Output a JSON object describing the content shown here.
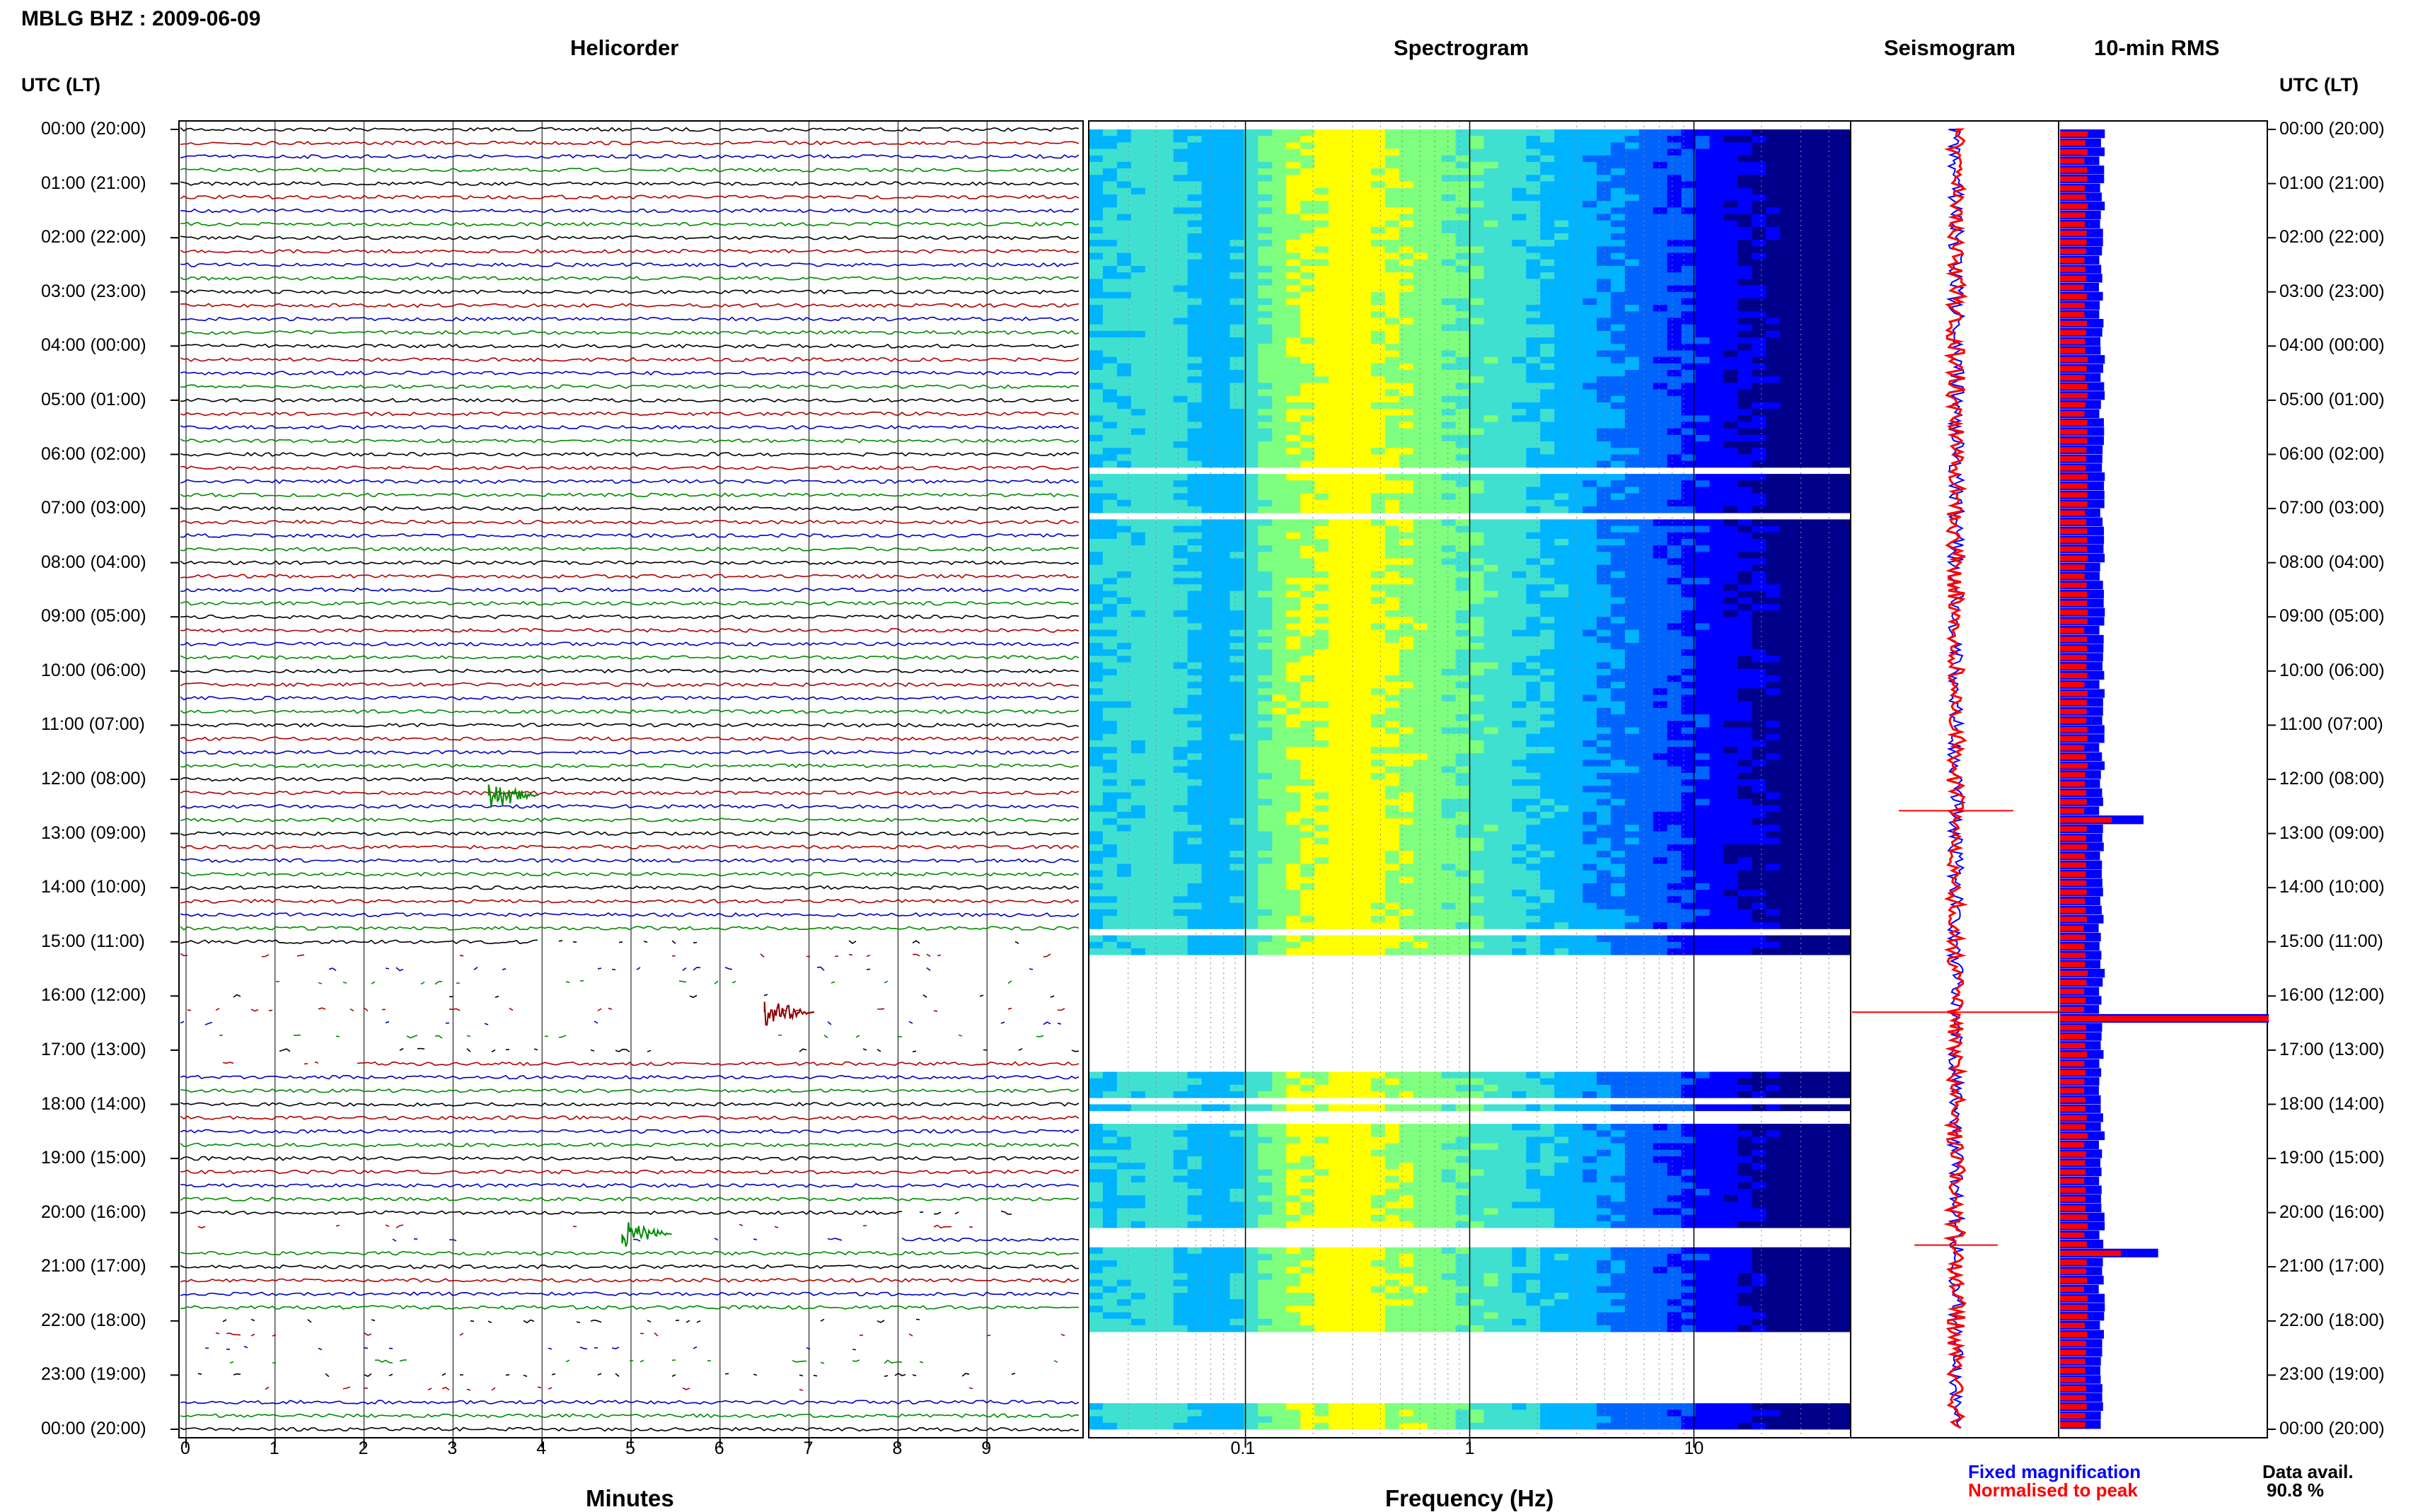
{
  "header": {
    "station_title": "MBLG BHZ : 2009-06-09",
    "helicorder_title": "Helicorder",
    "spectrogram_title": "Spectrogram",
    "seismogram_title": "Seismogram",
    "rms_title": "10-min RMS",
    "time_header_left": "UTC (LT)",
    "time_header_right": "UTC (LT)"
  },
  "time_labels": [
    "00:00 (20:00)",
    "01:00 (21:00)",
    "02:00 (22:00)",
    "03:00 (23:00)",
    "04:00 (00:00)",
    "05:00 (01:00)",
    "06:00 (02:00)",
    "07:00 (03:00)",
    "08:00 (04:00)",
    "09:00 (05:00)",
    "10:00 (06:00)",
    "11:00 (07:00)",
    "12:00 (08:00)",
    "13:00 (09:00)",
    "14:00 (10:00)",
    "15:00 (11:00)",
    "16:00 (12:00)",
    "17:00 (13:00)",
    "18:00 (14:00)",
    "19:00 (15:00)",
    "20:00 (16:00)",
    "21:00 (17:00)",
    "22:00 (18:00)",
    "23:00 (19:00)",
    "00:00 (20:00)"
  ],
  "chart_data": [
    {
      "type": "line",
      "panel": "Helicorder",
      "xlabel": "Minutes",
      "x_ticks": [
        "0",
        "1",
        "2",
        "3",
        "4",
        "5",
        "6",
        "7",
        "8",
        "9"
      ],
      "xlim": [
        0,
        10
      ],
      "trace_colors": [
        "#000000",
        "#b00000",
        "#0000c0",
        "#008a00"
      ],
      "events": [
        {
          "utc_hour": 12.3,
          "minute": 3.4,
          "color": "#008a00"
        },
        {
          "utc_hour": 20.4,
          "minute": 4.9,
          "color": "#008a00"
        },
        {
          "utc_hour": 16.3,
          "minute": 6.5,
          "color": "#8b0000"
        }
      ],
      "gaps_utc_hours": [
        [
          15.1,
          17.3
        ],
        [
          20.2,
          20.7
        ],
        [
          22.0,
          23.5
        ]
      ]
    },
    {
      "type": "heatmap",
      "panel": "Spectrogram",
      "xlabel": "Frequency (Hz)",
      "x_scale": "log",
      "x_ticks": [
        "0.1",
        "1",
        "10"
      ],
      "xlim": [
        0.02,
        50
      ],
      "peak_frequency_hz": 0.22,
      "colormap": [
        "#00008b",
        "#0000ff",
        "#0064ff",
        "#00b4ff",
        "#40e0d0",
        "#7fff7f",
        "#ffff00"
      ],
      "gaps_utc_hours": [
        [
          6.1,
          6.15
        ],
        [
          6.3,
          6.35
        ],
        [
          7.1,
          7.15
        ],
        [
          14.8,
          14.85
        ],
        [
          15.3,
          17.4
        ],
        [
          17.9,
          18.0
        ],
        [
          18.1,
          18.3
        ],
        [
          20.3,
          20.6
        ],
        [
          22.2,
          23.5
        ]
      ]
    },
    {
      "type": "line",
      "panel": "Seismogram",
      "series": [
        {
          "name": "Fixed magnification",
          "color": "#0000ff"
        },
        {
          "name": "Normalised to peak",
          "color": "#ff0000"
        }
      ],
      "spikes": [
        {
          "utc_hour": 12.58,
          "amplitude": 0.55
        },
        {
          "utc_hour": 16.3,
          "amplitude": 1.0
        },
        {
          "utc_hour": 20.6,
          "amplitude": 0.4
        }
      ]
    },
    {
      "type": "bar",
      "panel": "10-min RMS",
      "series": [
        {
          "name": "Fixed magnification",
          "color": "#0000ff"
        },
        {
          "name": "Normalised to peak",
          "color": "#ff0000"
        }
      ],
      "base_level": 0.2,
      "peaks": [
        {
          "utc_hour": 12.6,
          "value": 0.4
        },
        {
          "utc_hour": 16.3,
          "value": 1.0
        },
        {
          "utc_hour": 20.6,
          "value": 0.47
        }
      ]
    }
  ],
  "legend": {
    "fixed": "Fixed magnification",
    "normalised": "Normalised to peak",
    "fixed_color": "#0000ff",
    "normalised_color": "#ff0000"
  },
  "availability": {
    "label": "Data avail.",
    "value": "90.8 %"
  }
}
